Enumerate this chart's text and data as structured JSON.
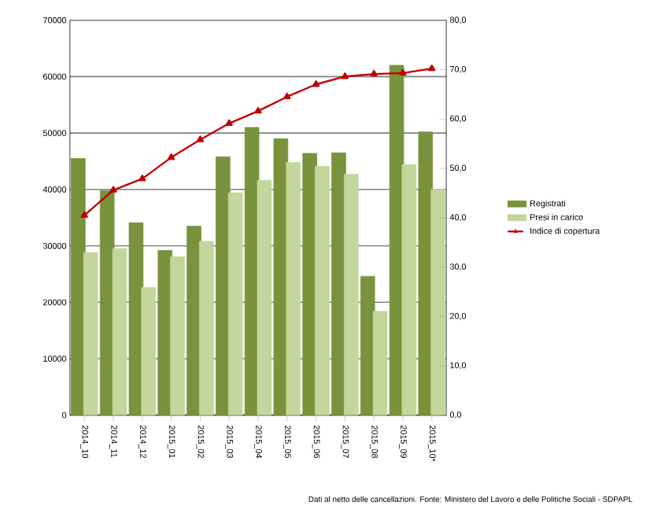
{
  "chart_data": {
    "type": "bar",
    "categories": [
      "2014_10",
      "2014_11",
      "2014_12",
      "2015_01",
      "2015_02",
      "2015_03",
      "2015_04",
      "2015_05",
      "2015_06",
      "2015_07",
      "2015_08",
      "2015_09",
      "2015_10*"
    ],
    "series": [
      {
        "name": "Registrati",
        "color": "#77933c",
        "values": [
          45500,
          39800,
          34100,
          29200,
          33500,
          45800,
          51000,
          49000,
          46400,
          46500,
          24600,
          62000,
          50200
        ]
      },
      {
        "name": "Presi in carico",
        "color": "#c3d69b",
        "values": [
          28800,
          29500,
          22600,
          28100,
          30800,
          39400,
          41600,
          44800,
          44100,
          42700,
          18400,
          44400,
          40000
        ]
      },
      {
        "name": "Indice di copertura",
        "type": "line",
        "axis": "y2",
        "color": "#c00000",
        "marker": "triangle",
        "values": [
          40.5,
          45.6,
          47.9,
          52.2,
          55.8,
          59.1,
          61.6,
          64.5,
          67.0,
          68.6,
          69.1,
          69.3,
          70.2
        ]
      }
    ],
    "ylim": [
      0,
      70000
    ],
    "yticks": [
      0,
      10000,
      20000,
      30000,
      40000,
      50000,
      60000,
      70000
    ],
    "y2lim": [
      0,
      80
    ],
    "y2ticks": [
      {
        "value": 0,
        "label": "0,0"
      },
      {
        "value": 10,
        "label": "10,0"
      },
      {
        "value": 20,
        "label": "20,0"
      },
      {
        "value": 30,
        "label": "30,0"
      },
      {
        "value": 40,
        "label": "40,0"
      },
      {
        "value": 50,
        "label": "50,0"
      },
      {
        "value": 60,
        "label": "60,0"
      },
      {
        "value": 70,
        "label": "70,0"
      },
      {
        "value": 80,
        "label": "80,0"
      }
    ],
    "grid": "y",
    "legend": "right",
    "annotations": [
      "Dati al netto delle cancellazioni. Fonte: Ministero del Lavoro e delle Politiche Sociali - SDPAPL"
    ]
  }
}
